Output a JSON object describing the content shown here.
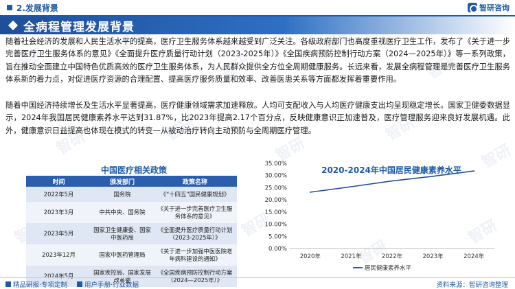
{
  "header": {
    "section_title": "2.发展背景",
    "logo_text": "智研咨询"
  },
  "banner": {
    "title": "全病程管理发展背景"
  },
  "paragraphs": {
    "p1": "随着社会经济的发展和人民生活水平的提高，医疗卫生服务体系越来越受到广泛关注。各级政府部门也高度重视医疗卫生工作，发布了《关于进一步完善医疗卫生服务体系的意见》《全面提升医疗质量行动计划（2023-2025年）》《全国疾病预防控制行动方案（2024—2025年）》等一系列政策，旨在推动全面建立中国特色优质高效的医疗卫生服务体系，为人民群众提供全方位全周期健康服务。长远来看，发展全病程管理是完善医疗卫生服务体系新的着力点，对促进医疗资源的合理配置、提高医疗服务质量和效率、改善医患关系等方面都发挥着重要作用。",
    "p2": "随着中国经济持续增长及生活水平显著提高，医疗健康领域需求加速释放。人均可支配收入与人均医疗健康支出均呈现稳定增长。国家卫健委数据显示，2024年我国居民健康素养水平达到31.87%，比2023年提高2.17个百分点，反映健康意识正加速普及，医疗管理服务迎来良好发展机遇。此外，健康意识日益提高也体现在模式的转变—从被动治疗转向主动预防与全周期医疗管理。"
  },
  "policy_table": {
    "title": "中国医疗相关政策",
    "headers": [
      "时间",
      "颁发部门",
      "政策名称"
    ],
    "rows": [
      [
        "2022年5月",
        "国务院",
        "《“十四五”国民健康规划》"
      ],
      [
        "2023年3月",
        "中共中央、国务院",
        "《关于进一步完善医疗卫生服务体系的意见》"
      ],
      [
        "2023年5月",
        "国家卫生健康委、国家中医药局",
        "《全面提升医疗质量行动计划（2023-2025年）》"
      ],
      [
        "2023年12月",
        "国家中医药管理局",
        "《关于进一步加强中医医院老年病科建设的通知》"
      ],
      [
        "2024年5月",
        "国家疾控局、国家发展改革委",
        "《全国疾病预防控制行动方案（2024—2025年）》"
      ]
    ]
  },
  "chart_data": {
    "type": "line",
    "title": "2020-2024年中国居民健康素养水平",
    "x": [
      "2020年",
      "2021年",
      "2022年",
      "2023年",
      "2024年"
    ],
    "series": [
      {
        "name": "居民健康素养水平",
        "values": [
          23.15,
          25.4,
          27.78,
          29.7,
          31.87
        ]
      }
    ],
    "y_ticks": [
      "0.00%",
      "5.00%",
      "10.00%",
      "15.00%",
      "20.00%",
      "25.00%",
      "30.00%",
      "35.00%"
    ],
    "ylim": [
      0,
      35
    ],
    "y_unit": "%",
    "grid": false,
    "legend_position": "bottom-left",
    "line_color": "#1f4e9a"
  },
  "footer": {
    "left_label": "精品研报·专项定制",
    "right_label": "用户手册·行业数据",
    "source": "资料来源：智研咨询整理"
  }
}
